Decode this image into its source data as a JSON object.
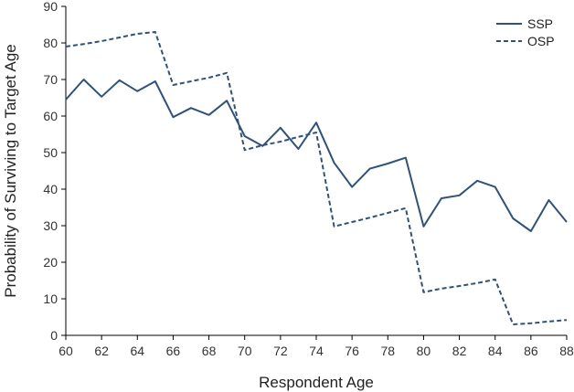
{
  "chart_data": {
    "type": "line",
    "title": "",
    "xlabel": "Respondent Age",
    "ylabel": "Probability of Surviving to Target Age",
    "xlim": [
      60,
      88
    ],
    "ylim": [
      0,
      90
    ],
    "xticks": [
      60,
      62,
      64,
      66,
      68,
      70,
      72,
      74,
      76,
      78,
      80,
      82,
      84,
      86,
      88
    ],
    "yticks": [
      0,
      10,
      20,
      30,
      40,
      50,
      60,
      70,
      80,
      90
    ],
    "grid": false,
    "legend_position": "top-right",
    "x": [
      60,
      61,
      62,
      63,
      64,
      65,
      66,
      67,
      68,
      69,
      70,
      71,
      72,
      73,
      74,
      75,
      76,
      77,
      78,
      79,
      80,
      81,
      82,
      83,
      84,
      85,
      86,
      87,
      88
    ],
    "series": [
      {
        "name": "SSP",
        "style": "solid",
        "color": "#2c5282",
        "values": [
          64.5,
          70,
          65.3,
          69.8,
          66.8,
          69.5,
          59.7,
          62.2,
          60.3,
          64.2,
          54.5,
          51.8,
          56.8,
          51,
          58.2,
          47.2,
          40.6,
          45.6,
          47,
          48.6,
          29.8,
          37.5,
          38.3,
          42.3,
          40.6,
          32,
          28.5,
          37,
          31
        ]
      },
      {
        "name": "OSP",
        "style": "dashed",
        "color": "#2c5282",
        "values": [
          79,
          79.7,
          80.5,
          81.5,
          82.5,
          83,
          68.5,
          69.5,
          70.5,
          71.8,
          50.7,
          52,
          53,
          54.3,
          55.5,
          29.8,
          31,
          32.2,
          33.5,
          34.8,
          11.8,
          12.8,
          13.5,
          14.3,
          15.3,
          3,
          3.3,
          3.8,
          4.2
        ]
      }
    ]
  }
}
